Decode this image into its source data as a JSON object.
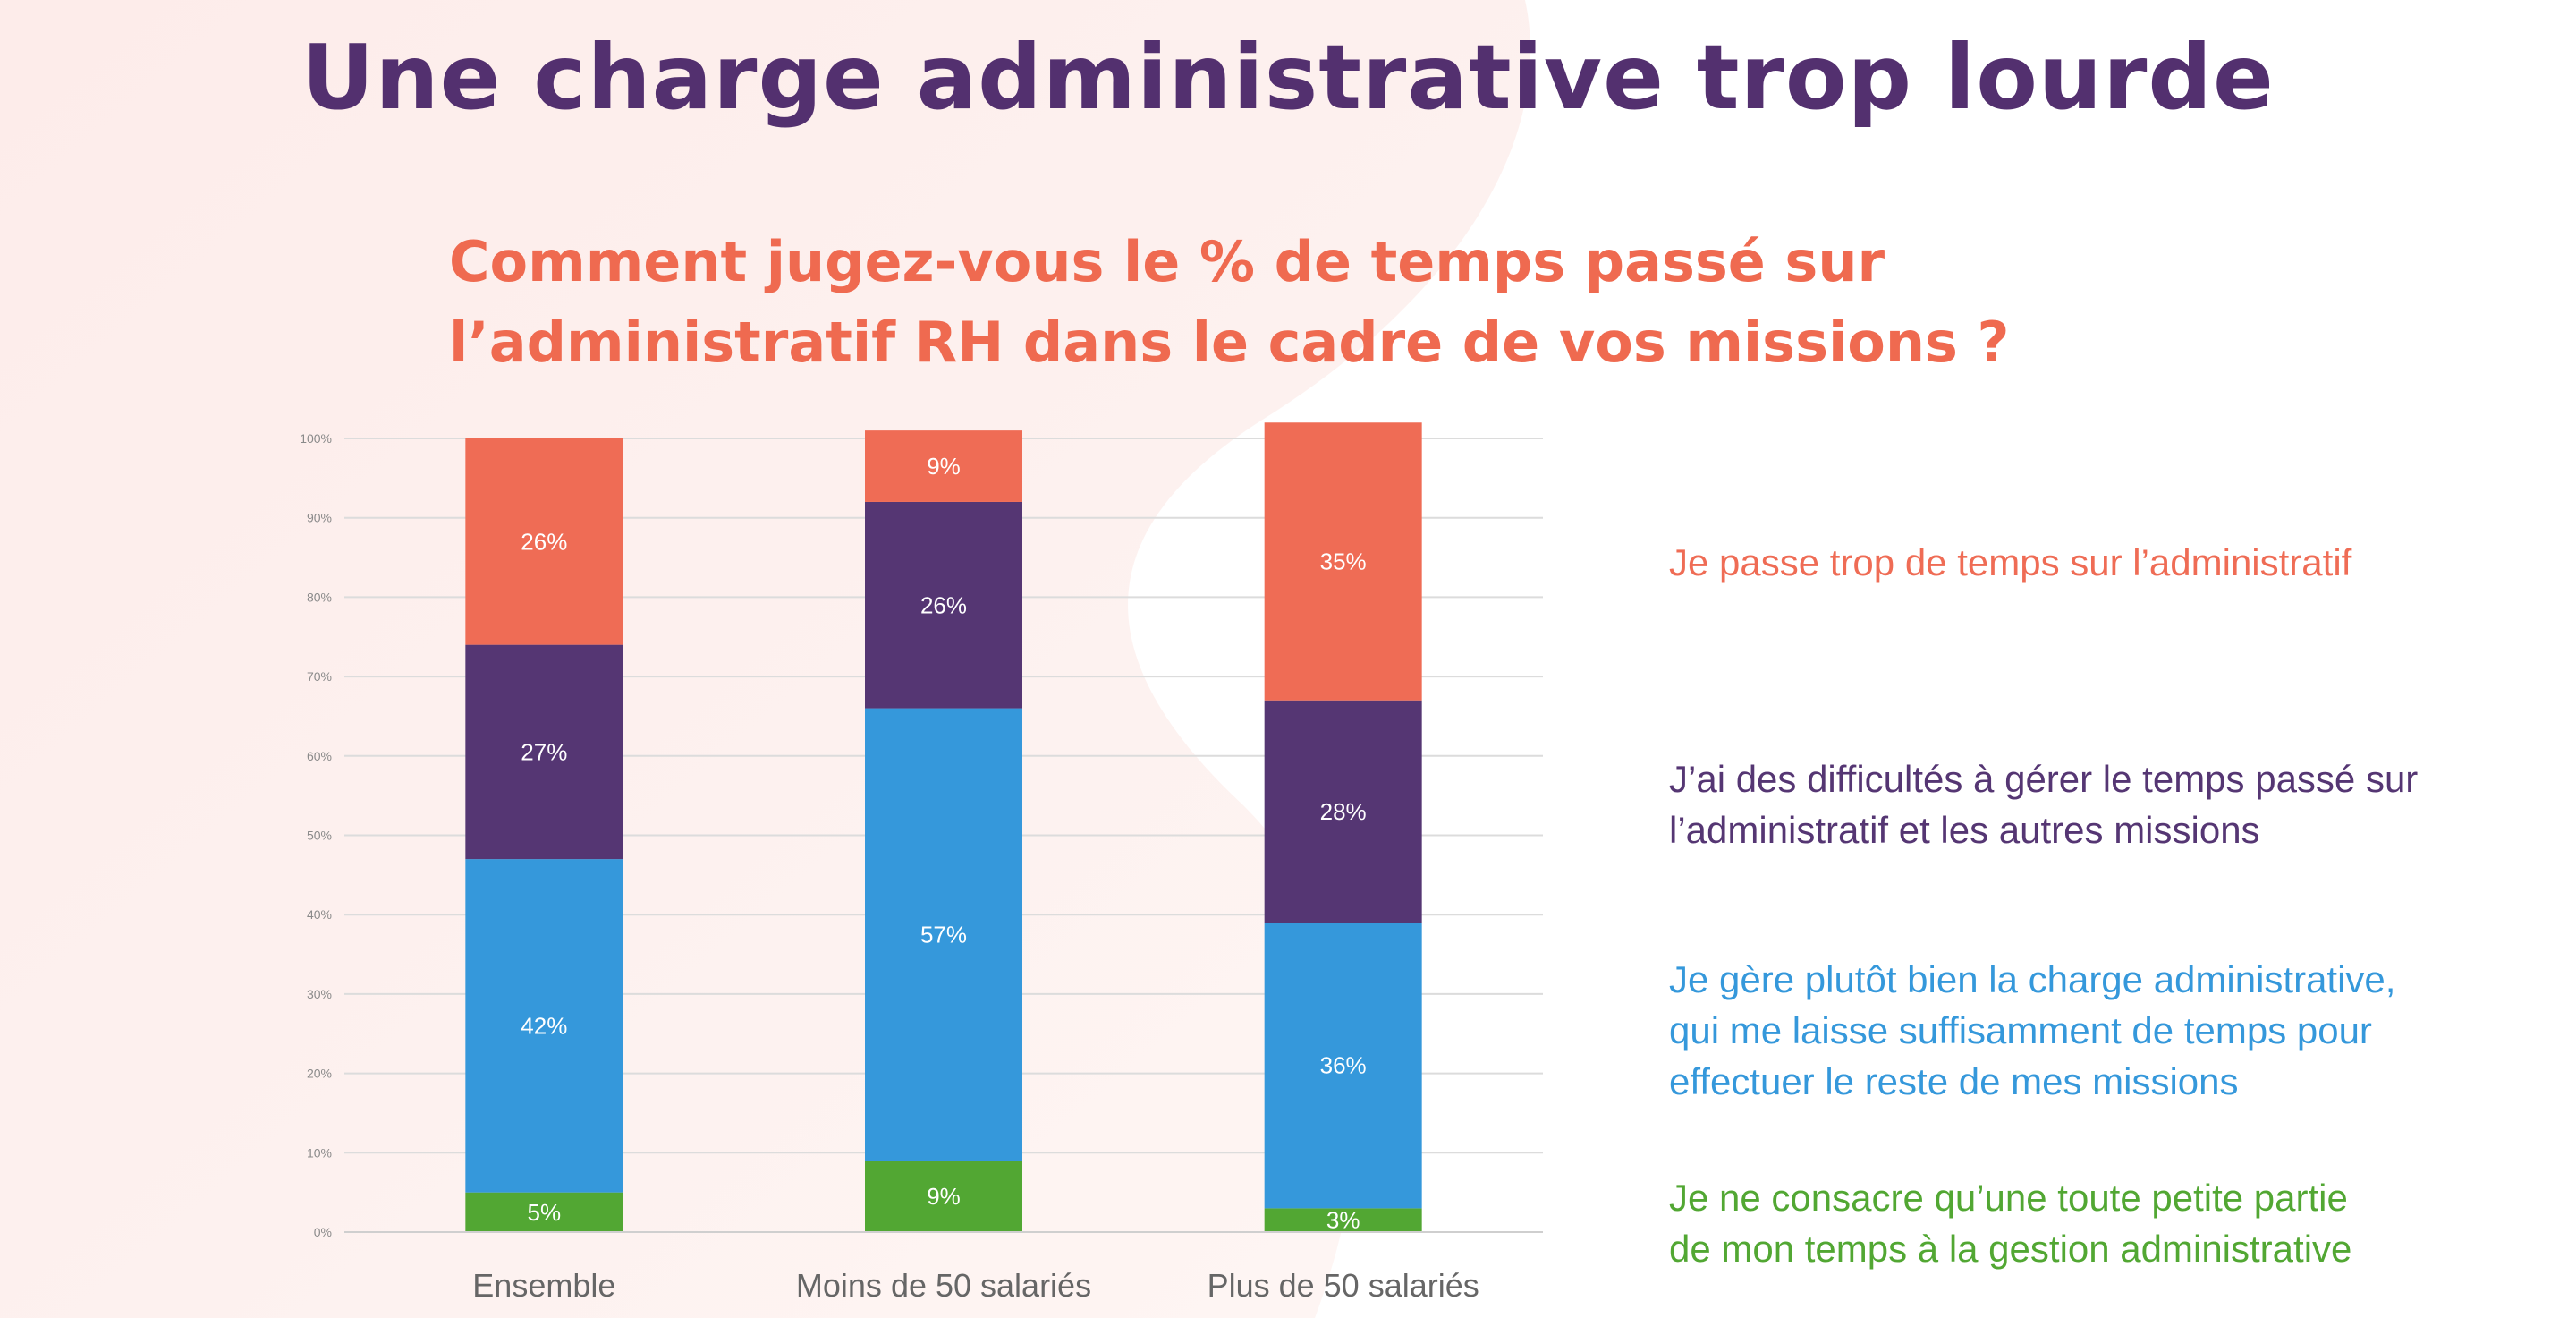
{
  "page": {
    "title": "Une charge administrative trop lourde",
    "question_lines": [
      "Comment jugez-vous le % de temps passé sur",
      "l’administratif RH dans le cadre de vos missions ?"
    ]
  },
  "chart_data": {
    "type": "bar",
    "stacked": true,
    "title": "",
    "xlabel": "",
    "ylabel": "",
    "ylim": [
      0,
      100
    ],
    "yticks": [
      "0%",
      "10%",
      "20%",
      "30%",
      "40%",
      "50%",
      "60%",
      "70%",
      "80%",
      "90%",
      "100%"
    ],
    "grid": true,
    "legend_position": "right",
    "categories": [
      "Ensemble",
      "Moins de 50 salariés",
      "Plus de 50 salariés"
    ],
    "series": [
      {
        "name": "Je ne consacre qu’une toute petite partie de mon temps à la gestion administrative",
        "color": "#52a733",
        "values": [
          5,
          9,
          3
        ],
        "labels": [
          "5%",
          "9%",
          "3%"
        ]
      },
      {
        "name": "Je gère plutôt bien la charge administrative, qui me laisse suffisamment de temps pour effectuer le reste de mes missions",
        "color": "#3598db",
        "values": [
          42,
          57,
          36
        ],
        "labels": [
          "42%",
          "57%",
          "36%"
        ]
      },
      {
        "name": "J’ai des difficultés à gérer le temps passé sur l’administratif et les autres missions",
        "color": "#553673",
        "values": [
          27,
          26,
          28
        ],
        "labels": [
          "27%",
          "26%",
          "28%"
        ]
      },
      {
        "name": "Je passe trop de temps sur l’administratif",
        "color": "#ef6c55",
        "values": [
          26,
          9,
          35
        ],
        "labels": [
          "26%",
          "9%",
          "35%"
        ]
      }
    ]
  },
  "legend": [
    {
      "lines": [
        "Je passe trop de temps sur l’administratif"
      ],
      "color": "#ef6c55"
    },
    {
      "lines": [
        "J’ai des difficultés à gérer le temps passé sur",
        "l’administratif et les autres missions"
      ],
      "color": "#553673"
    },
    {
      "lines": [
        "Je gère plutôt bien la charge administrative,",
        "qui me laisse suffisamment de temps pour",
        "effectuer le reste de mes missions"
      ],
      "color": "#3598db"
    },
    {
      "lines": [
        "Je ne consacre qu’une toute petite partie",
        "de mon temps à la gestion administrative"
      ],
      "color": "#52a733"
    }
  ]
}
